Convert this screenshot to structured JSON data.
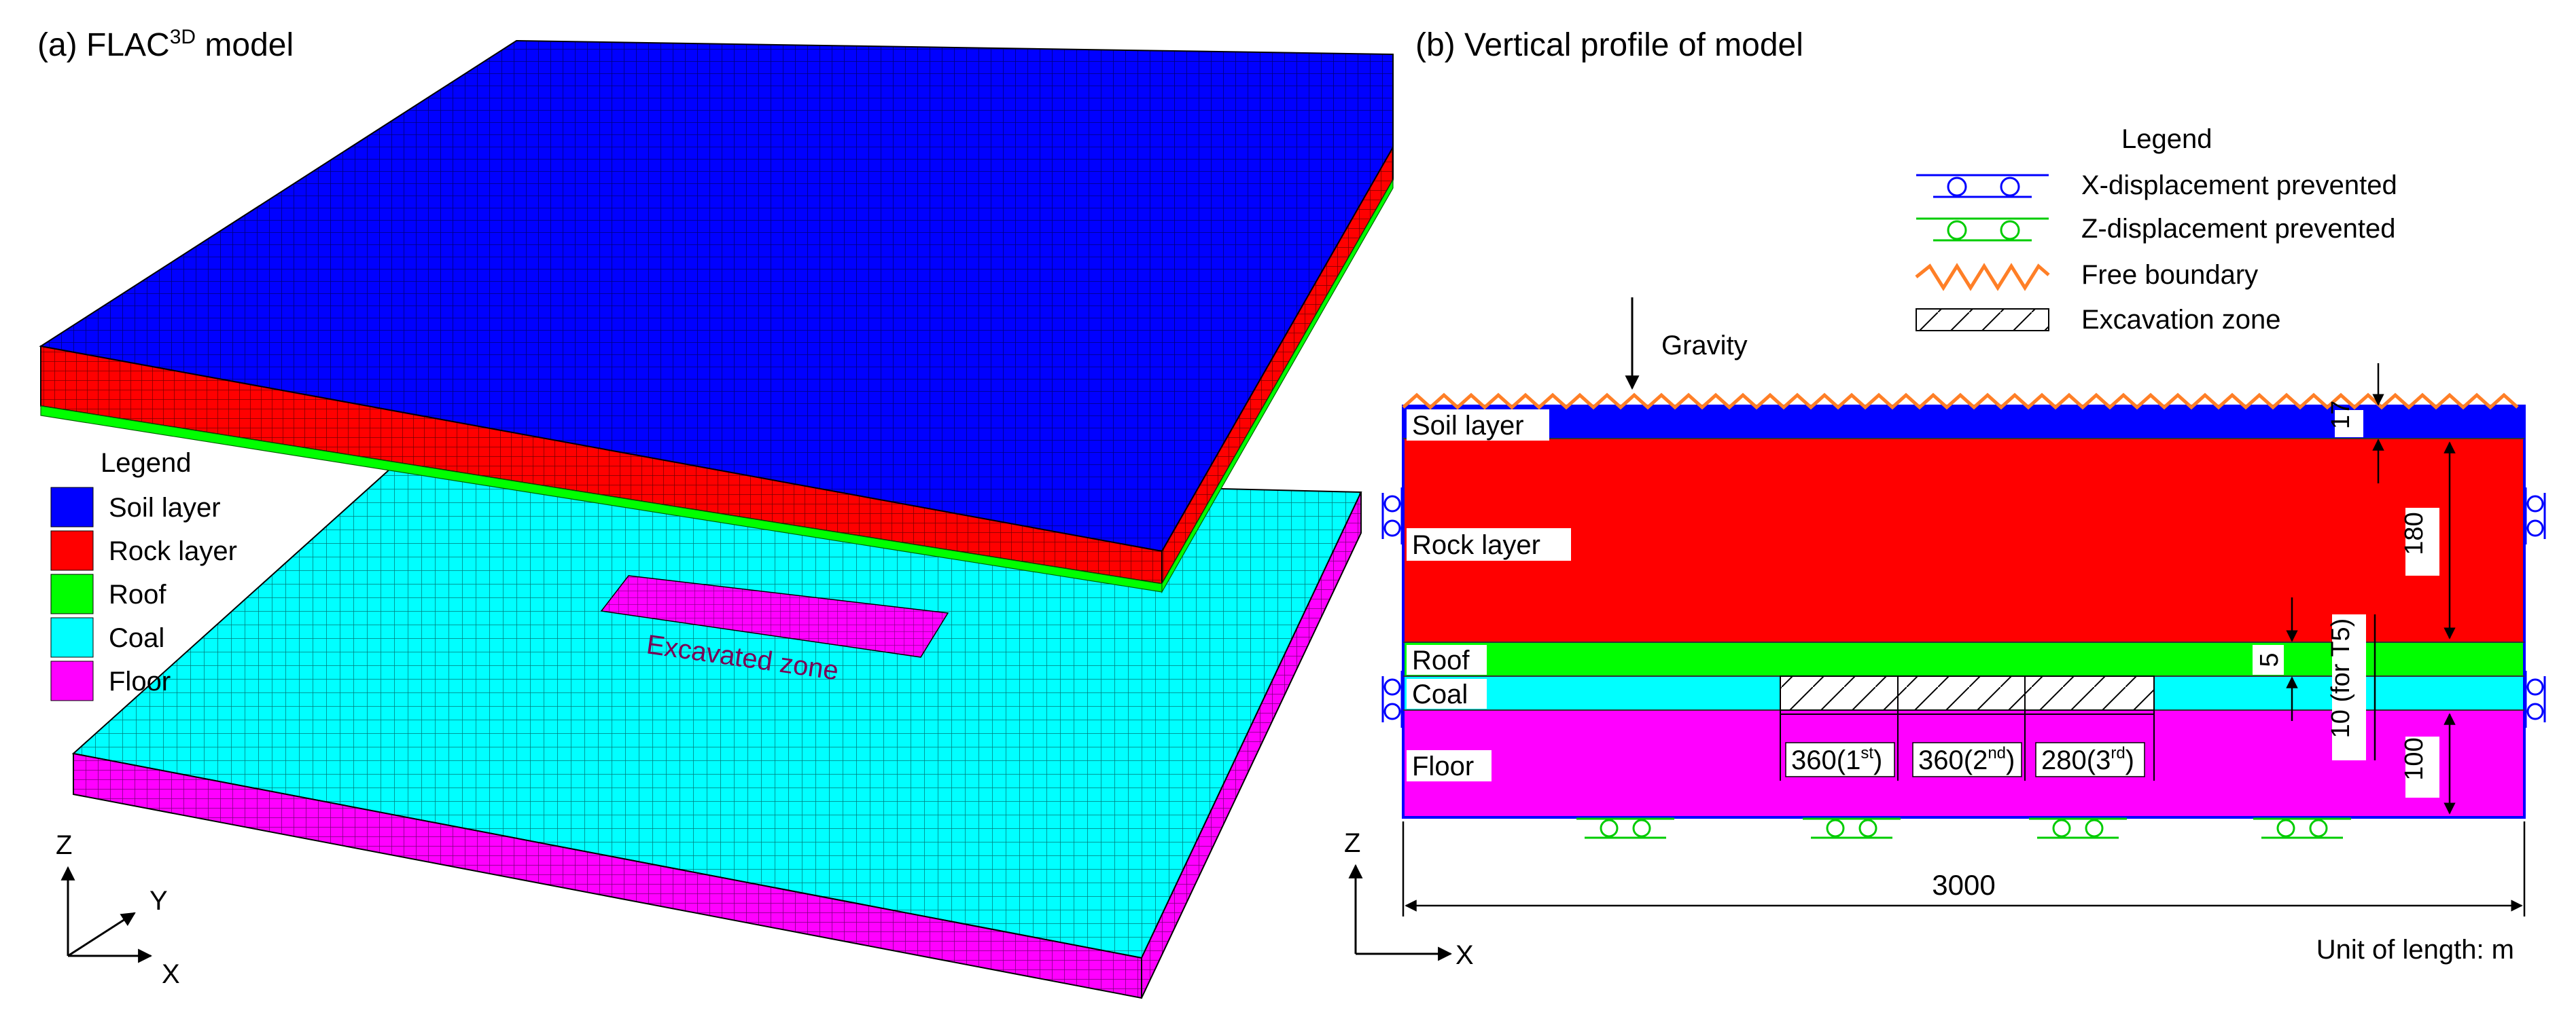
{
  "panel_a": {
    "title_prefix": "(a) FLAC",
    "title_sup": "3D",
    "title_suffix": " model",
    "legend_title": "Legend",
    "legend_items": [
      {
        "label": "Soil layer",
        "color": "#0000ff"
      },
      {
        "label": "Rock layer",
        "color": "#ff0000"
      },
      {
        "label": "Roof",
        "color": "#00ff00"
      },
      {
        "label": "Coal",
        "color": "#00ffff"
      },
      {
        "label": "Floor",
        "color": "#ff00ff"
      }
    ],
    "excavated_label": "Excavated zone",
    "axis_z": "Z",
    "axis_y": "Y",
    "axis_x": "X"
  },
  "panel_b": {
    "title": "(b) Vertical profile of model",
    "legend_title": "Legend",
    "legend_items": [
      {
        "label": "X-displacement prevented",
        "kind": "x-roller",
        "color": "#0000ff"
      },
      {
        "label": "Z-displacement prevented",
        "kind": "z-roller",
        "color": "#00cc00"
      },
      {
        "label": "Free boundary",
        "kind": "zigzag",
        "color": "#ff7f27"
      },
      {
        "label": "Excavation zone",
        "kind": "hatch",
        "color": "#000000"
      }
    ],
    "gravity_label": "Gravity",
    "layers": [
      {
        "name": "Soil layer",
        "color": "#0000ff"
      },
      {
        "name": "Rock layer",
        "color": "#ff0000"
      },
      {
        "name": "Roof",
        "color": "#00ff00"
      },
      {
        "name": "Coal",
        "color": "#00ffff"
      },
      {
        "name": "Floor",
        "color": "#ff00ff"
      }
    ],
    "dimensions": {
      "soil": "17",
      "rock": "180",
      "roof": "5",
      "coal": "10 (for T5)",
      "floor": "100",
      "width": "3000"
    },
    "excavation_segments": [
      {
        "value": "360",
        "ordinal": "1",
        "suffix": "st"
      },
      {
        "value": "360",
        "ordinal": "2",
        "suffix": "nd"
      },
      {
        "value": "280",
        "ordinal": "3",
        "suffix": "rd"
      }
    ],
    "axis_z": "Z",
    "axis_x": "X",
    "unit_note": "Unit of length: m"
  }
}
